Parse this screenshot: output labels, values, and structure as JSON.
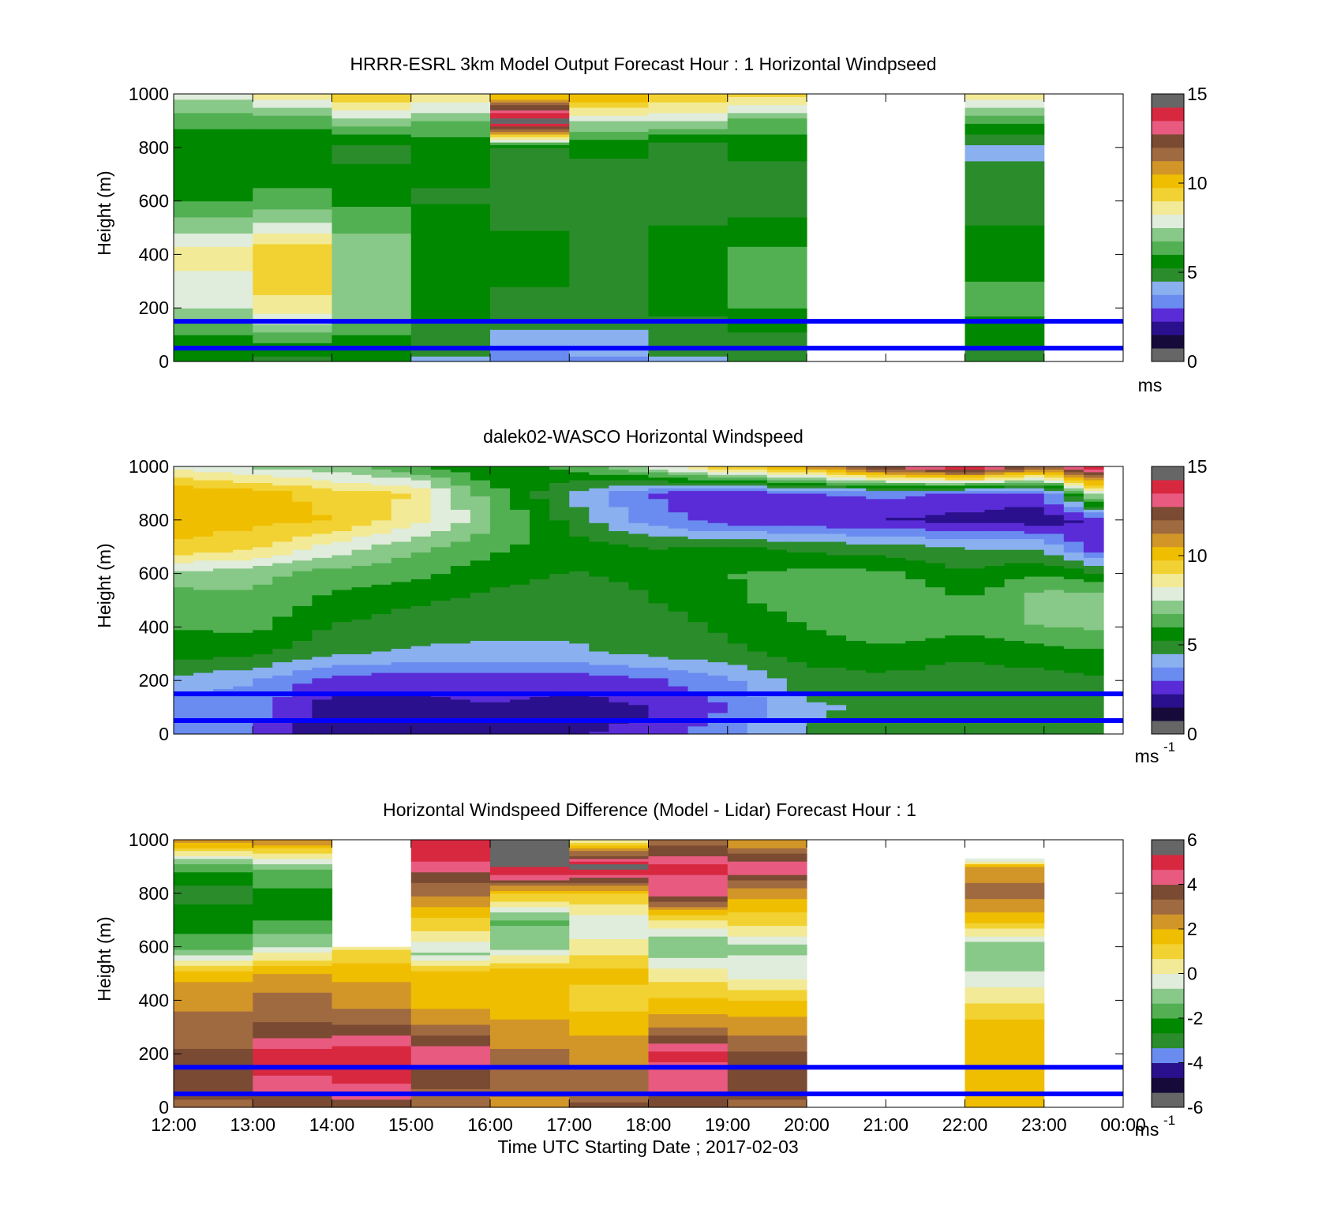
{
  "figure": {
    "background": "#ffffff"
  },
  "colormaps": {
    "speed": [
      "#666666",
      "#160a3a",
      "#2a108c",
      "#5a2cd8",
      "#6a8cf0",
      "#8ab0f0",
      "#2b8c2b",
      "#008800",
      "#52b052",
      "#88c888",
      "#e0ecdc",
      "#f2ea96",
      "#f2d232",
      "#f0be00",
      "#d29628",
      "#a06a40",
      "#7a4a32",
      "#e85a80",
      "#d82840",
      "#666666"
    ],
    "diff": [
      "#666666",
      "#160a3a",
      "#2a108c",
      "#6a8cf0",
      "#2b8c2b",
      "#008800",
      "#52b052",
      "#88c888",
      "#e0ecdc",
      "#f2ea96",
      "#f2d232",
      "#f0be00",
      "#d29628",
      "#a06a40",
      "#7a4a32",
      "#e85a80",
      "#d82840",
      "#666666"
    ]
  },
  "chart_data": [
    {
      "type": "heatmap",
      "title": "HRRR-ESRL 3km Model Output   Forecast Hour : 1 Horizontal Windpseed",
      "ylabel": "Height (m)",
      "xlabel": "",
      "ylim": [
        0,
        1000
      ],
      "yticks": [
        "0",
        "200",
        "400",
        "600",
        "800",
        "1000"
      ],
      "x_start": "12:00",
      "x_end": "00:00",
      "colorbar": {
        "min": 0,
        "max": 15,
        "ticks": [
          "0",
          "5",
          "10",
          "15"
        ],
        "unit": "ms",
        "unit_sup": "",
        "colormap": "speed"
      },
      "reference_lines_m": [
        50,
        150
      ],
      "reference_line_color": "#0000ff",
      "columns": [
        {
          "start": "12:00",
          "end": "13:00",
          "heights": [
            0,
            100,
            200,
            400,
            600,
            800,
            900,
            1000
          ],
          "values": [
            5.5,
            6.0,
            7.5,
            8.6,
            6.0,
            5.5,
            6.2,
            7.8
          ]
        },
        {
          "start": "13:00",
          "end": "14:00",
          "heights": [
            0,
            100,
            200,
            400,
            600,
            800,
            900,
            1000
          ],
          "values": [
            5.0,
            6.5,
            8.8,
            9.6,
            6.2,
            5.4,
            6.3,
            8.6
          ]
        },
        {
          "start": "14:00",
          "end": "15:00",
          "heights": [
            0,
            100,
            200,
            400,
            600,
            800,
            900,
            1000
          ],
          "values": [
            5.4,
            6.0,
            7.2,
            7.4,
            5.8,
            5.0,
            7.2,
            9.6
          ]
        },
        {
          "start": "15:00",
          "end": "16:00",
          "heights": [
            0,
            100,
            200,
            400,
            600,
            800,
            900,
            1000
          ],
          "values": [
            4.4,
            4.8,
            5.6,
            6.0,
            5.2,
            5.4,
            6.8,
            9.0
          ]
        },
        {
          "start": "16:00",
          "end": "17:00",
          "heights": [
            0,
            100,
            200,
            400,
            600,
            800,
            900,
            1000
          ],
          "values": [
            3.0,
            4.4,
            5.0,
            5.6,
            4.8,
            5.2,
            15.0,
            9.6
          ]
        },
        {
          "start": "17:00",
          "end": "18:00",
          "heights": [
            0,
            100,
            200,
            400,
            600,
            800,
            900,
            1000
          ],
          "values": [
            3.6,
            4.4,
            4.8,
            5.2,
            4.6,
            5.4,
            7.6,
            10.6
          ]
        },
        {
          "start": "18:00",
          "end": "19:00",
          "heights": [
            0,
            100,
            200,
            400,
            600,
            800,
            900,
            1000
          ],
          "values": [
            4.4,
            4.8,
            5.4,
            6.0,
            4.6,
            4.6,
            7.6,
            9.6
          ]
        },
        {
          "start": "19:00",
          "end": "20:00",
          "heights": [
            0,
            100,
            200,
            400,
            600,
            800,
            900,
            1000
          ],
          "values": [
            4.8,
            5.2,
            6.0,
            6.2,
            4.8,
            5.4,
            6.6,
            9.2
          ]
        },
        {
          "start": "22:00",
          "end": "23:00",
          "heights": [
            0,
            100,
            200,
            400,
            600,
            800,
            900,
            1000
          ],
          "values": [
            4.6,
            5.6,
            6.2,
            5.8,
            4.8,
            4.4,
            6.2,
            8.8
          ]
        }
      ]
    },
    {
      "type": "heatmap",
      "title": "dalek02-WASCO  Horizontal Windspeed",
      "ylabel": "Height (m)",
      "xlabel": "",
      "ylim": [
        0,
        1000
      ],
      "yticks": [
        "0",
        "200",
        "400",
        "600",
        "800",
        "1000"
      ],
      "x_start": "12:00",
      "x_end": "00:00",
      "colorbar": {
        "min": 0,
        "max": 15,
        "ticks": [
          "0",
          "5",
          "10",
          "15"
        ],
        "unit": "ms",
        "unit_sup": "-1",
        "colormap": "speed"
      },
      "reference_lines_m": [
        50,
        150
      ],
      "reference_line_color": "#0000ff",
      "column_width_min": 15,
      "profiles": {
        "times": [
          "12:00",
          "13:00",
          "14:00",
          "15:00",
          "16:00",
          "17:00",
          "18:00",
          "19:00",
          "20:00",
          "21:00",
          "22:00",
          "23:00",
          "00:00"
        ],
        "heights": [
          0,
          100,
          200,
          300,
          400,
          500,
          600,
          700,
          800,
          900,
          1000
        ],
        "values": [
          [
            3.2,
            3.4,
            4.2,
            5.6,
            6.0,
            6.2,
            7.4,
            9.6,
            10.2,
            10.4,
            8.0
          ],
          [
            3.0,
            3.3,
            3.8,
            5.4,
            6.2,
            6.6,
            7.0,
            9.2,
            10.0,
            10.2,
            7.4
          ],
          [
            1.6,
            1.8,
            2.6,
            4.6,
            5.2,
            5.8,
            6.4,
            8.0,
            9.8,
            9.4,
            7.0
          ],
          [
            1.8,
            2.0,
            2.4,
            4.4,
            4.8,
            5.4,
            6.2,
            7.0,
            8.6,
            9.0,
            6.2
          ],
          [
            2.2,
            2.2,
            2.6,
            4.2,
            4.8,
            5.0,
            5.6,
            6.2,
            7.0,
            6.4,
            5.2
          ],
          [
            2.2,
            2.0,
            2.4,
            4.4,
            4.6,
            4.8,
            5.2,
            5.6,
            5.0,
            4.4,
            6.2
          ],
          [
            2.4,
            2.2,
            2.8,
            4.6,
            4.8,
            5.2,
            5.4,
            5.2,
            3.4,
            3.0,
            7.6
          ],
          [
            3.6,
            3.0,
            3.6,
            5.0,
            5.4,
            5.8,
            6.0,
            5.4,
            2.6,
            2.2,
            9.8
          ],
          [
            4.6,
            4.4,
            4.8,
            5.6,
            6.0,
            6.4,
            6.2,
            5.0,
            2.4,
            3.0,
            10.6
          ],
          [
            4.8,
            4.6,
            5.0,
            5.8,
            6.4,
            6.8,
            6.2,
            4.8,
            2.2,
            3.2,
            13.0
          ],
          [
            5.0,
            4.6,
            4.8,
            5.4,
            6.2,
            6.0,
            5.4,
            4.4,
            2.0,
            2.8,
            14.4
          ],
          [
            4.8,
            4.8,
            5.0,
            5.6,
            6.8,
            7.2,
            6.0,
            4.4,
            1.8,
            2.6,
            12.0
          ],
          [
            5.0,
            4.8,
            5.2,
            6.0,
            6.8,
            7.4,
            5.0,
            1.4,
            2.6,
            10.8,
            15.0
          ]
        ]
      }
    },
    {
      "type": "heatmap",
      "title": "Horizontal Windspeed Difference (Model - Lidar) Forecast Hour : 1",
      "ylabel": "Height (m)",
      "xlabel": "Time UTC  Starting Date ; 2017-02-03",
      "ylim": [
        0,
        1000
      ],
      "yticks": [
        "0",
        "200",
        "400",
        "600",
        "800",
        "1000"
      ],
      "xticks": [
        "12:00",
        "13:00",
        "14:00",
        "15:00",
        "16:00",
        "17:00",
        "18:00",
        "19:00",
        "20:00",
        "21:00",
        "22:00",
        "23:00",
        "00:00"
      ],
      "x_start": "12:00",
      "x_end": "00:00",
      "colorbar": {
        "min": -6,
        "max": 6,
        "ticks": [
          "-6",
          "-4",
          "-2",
          "0",
          "2",
          "4",
          "6"
        ],
        "unit": "ms",
        "unit_sup": "-1",
        "colormap": "diff"
      },
      "reference_lines_m": [
        50,
        150
      ],
      "reference_line_color": "#0000ff",
      "columns": [
        {
          "start": "12:00",
          "end": "13:00",
          "heights": [
            0,
            100,
            200,
            300,
            400,
            500,
            600,
            700,
            800,
            900,
            1000
          ],
          "values": [
            3.0,
            4.0,
            3.4,
            3.0,
            2.4,
            1.8,
            -1.8,
            -2.2,
            -3.0,
            -1.8,
            2.6
          ]
        },
        {
          "start": "13:00",
          "end": "14:00",
          "heights": [
            0,
            100,
            200,
            300,
            400,
            500,
            600,
            700,
            800,
            900,
            1000
          ],
          "values": [
            3.4,
            4.6,
            5.0,
            3.4,
            3.0,
            2.0,
            -0.6,
            -2.0,
            -2.2,
            -1.2,
            2.6
          ]
        },
        {
          "start": "14:00",
          "end": "15:00",
          "heights": [
            0,
            100,
            200,
            300,
            400,
            500,
            600
          ],
          "values": [
            3.6,
            4.8,
            5.2,
            3.4,
            2.4,
            1.8,
            0.6
          ]
        },
        {
          "start": "15:00",
          "end": "16:00",
          "heights": [
            0,
            100,
            200,
            300,
            400,
            500,
            570,
            930,
            1000
          ],
          "values": [
            2.8,
            3.6,
            4.4,
            2.8,
            1.6,
            1.8,
            -0.8,
            4.8,
            5.2
          ]
        },
        {
          "start": "16:00",
          "end": "17:00",
          "heights": [
            0,
            100,
            200,
            300,
            400,
            500,
            600,
            700,
            800,
            880,
            1000
          ],
          "values": [
            2.4,
            3.0,
            2.8,
            2.2,
            1.6,
            2.0,
            -1.0,
            -1.4,
            1.4,
            5.2,
            6.0
          ]
        },
        {
          "start": "17:00",
          "end": "18:00",
          "heights": [
            0,
            100,
            200,
            300,
            400,
            500,
            600,
            700,
            800,
            900,
            1000
          ],
          "values": [
            3.4,
            3.0,
            2.4,
            1.8,
            1.0,
            1.6,
            0.2,
            -0.4,
            1.4,
            6.0,
            0.0
          ]
        },
        {
          "start": "18:00",
          "end": "19:00",
          "heights": [
            0,
            100,
            200,
            300,
            400,
            500,
            600,
            700,
            800,
            900,
            1000
          ],
          "values": [
            3.6,
            4.4,
            4.8,
            2.6,
            1.4,
            0.4,
            -1.4,
            0.6,
            4.4,
            4.8,
            3.0
          ]
        },
        {
          "start": "19:00",
          "end": "20:00",
          "heights": [
            0,
            100,
            200,
            300,
            400,
            500,
            600,
            700,
            800,
            900,
            1000
          ],
          "values": [
            3.2,
            3.6,
            3.4,
            2.4,
            1.4,
            -0.4,
            -0.8,
            1.0,
            2.2,
            4.6,
            2.0
          ]
        },
        {
          "start": "22:00",
          "end": "23:00",
          "heights": [
            0,
            100,
            200,
            300,
            400,
            500,
            600,
            700,
            800,
            900,
            930
          ],
          "values": [
            1.6,
            1.8,
            2.0,
            1.6,
            0.6,
            -0.6,
            -1.2,
            1.6,
            3.0,
            2.2,
            -1.0
          ]
        }
      ]
    }
  ]
}
